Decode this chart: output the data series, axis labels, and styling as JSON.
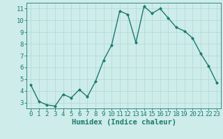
{
  "x": [
    0,
    1,
    2,
    3,
    4,
    5,
    6,
    7,
    8,
    9,
    10,
    11,
    12,
    13,
    14,
    15,
    16,
    17,
    18,
    19,
    20,
    21,
    22,
    23
  ],
  "y": [
    4.5,
    3.1,
    2.8,
    2.7,
    3.7,
    3.4,
    4.1,
    3.5,
    4.8,
    6.6,
    7.9,
    10.8,
    10.5,
    8.1,
    11.2,
    10.6,
    11.0,
    10.2,
    9.4,
    9.1,
    8.5,
    7.2,
    6.1,
    4.7
  ],
  "line_color": "#1a7a6e",
  "marker": "D",
  "marker_size": 2.0,
  "bg_color": "#ceecea",
  "grid_color": "#aed8d4",
  "xlabel": "Humidex (Indice chaleur)",
  "xlabel_color": "#1a7a6e",
  "tick_color": "#1a7a6e",
  "spine_color": "#1a7a6e",
  "ylim": [
    2.5,
    11.5
  ],
  "xlim": [
    -0.5,
    23.5
  ],
  "yticks": [
    3,
    4,
    5,
    6,
    7,
    8,
    9,
    10,
    11
  ],
  "xticks": [
    0,
    1,
    2,
    3,
    4,
    5,
    6,
    7,
    8,
    9,
    10,
    11,
    12,
    13,
    14,
    15,
    16,
    17,
    18,
    19,
    20,
    21,
    22,
    23
  ],
  "tick_fontsize": 6.5,
  "xlabel_fontsize": 7.5,
  "linewidth": 1.0
}
